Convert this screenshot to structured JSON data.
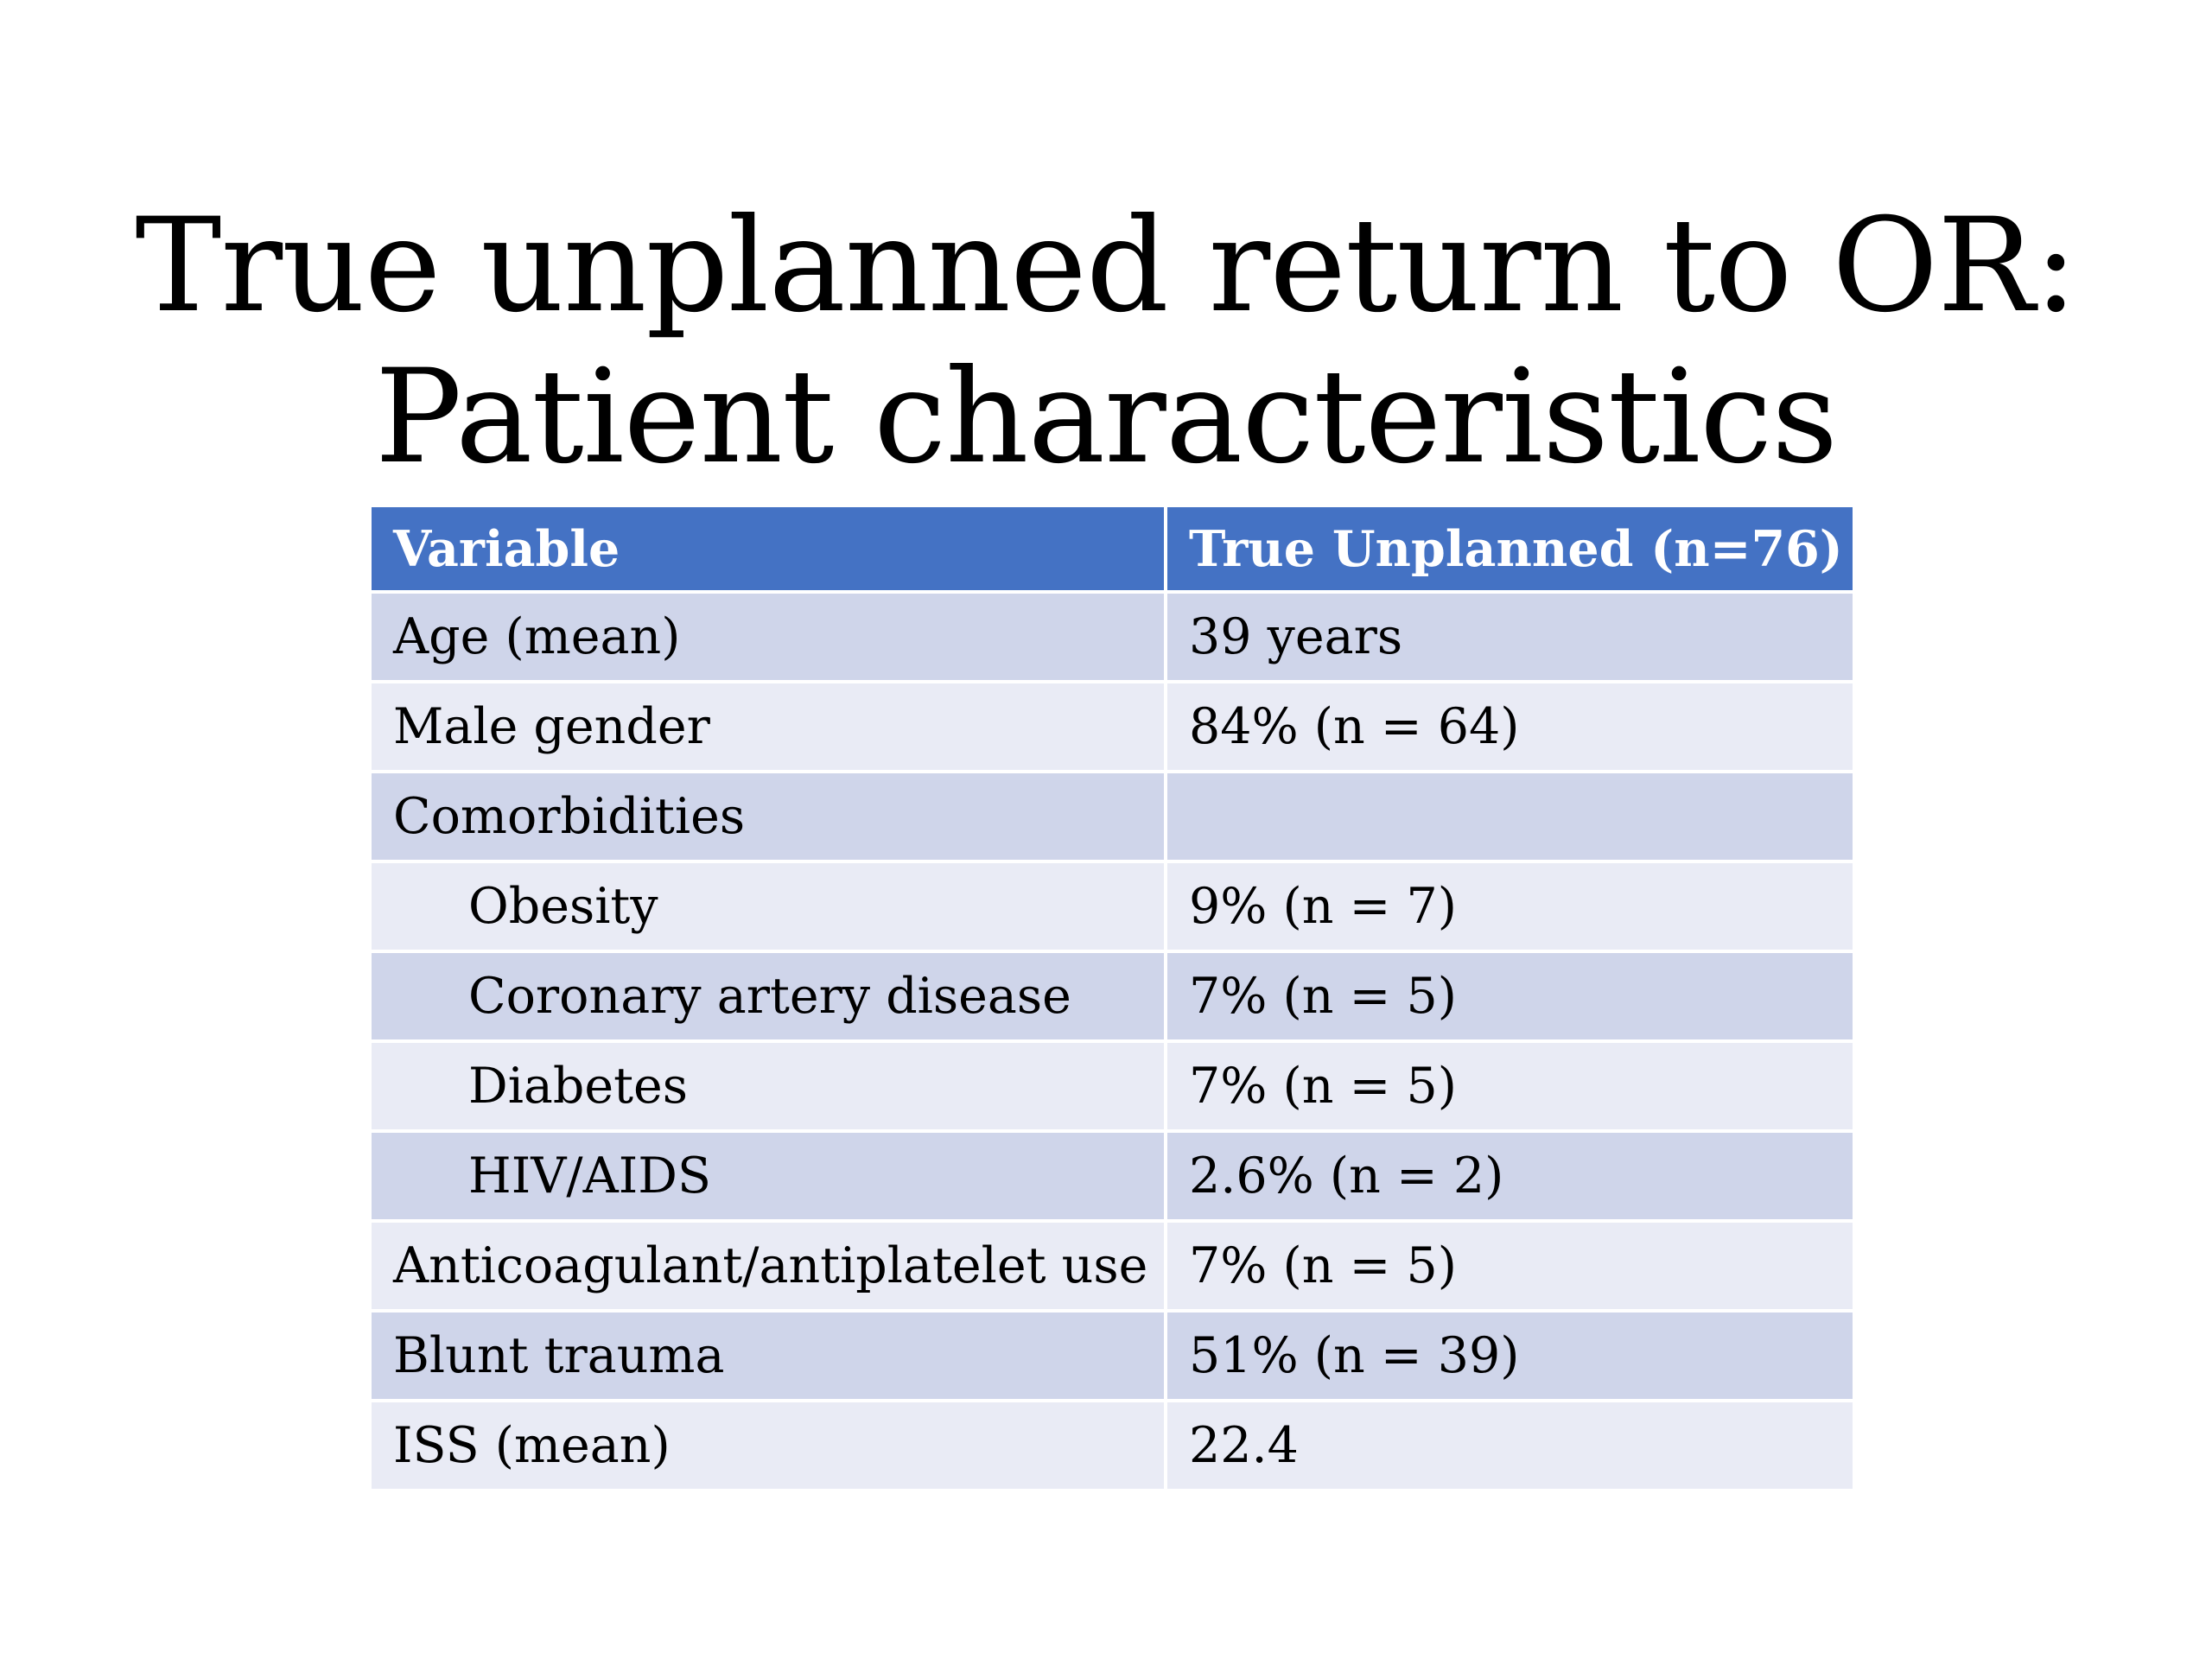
{
  "title": {
    "line1": "True unplanned return to OR:",
    "line2": "Patient characteristics"
  },
  "table": {
    "headers": [
      "Variable",
      "True Unplanned (n=76)"
    ],
    "rows": [
      {
        "variable": "Age (mean)",
        "value": "39 years",
        "indent": false
      },
      {
        "variable": "Male gender",
        "value": "84% (n = 64)",
        "indent": false
      },
      {
        "variable": "Comorbidities",
        "value": "",
        "indent": false
      },
      {
        "variable": "Obesity",
        "value": "9% (n = 7)",
        "indent": true
      },
      {
        "variable": "Coronary artery disease",
        "value": "7% (n = 5)",
        "indent": true
      },
      {
        "variable": "Diabetes",
        "value": "7% (n = 5)",
        "indent": true
      },
      {
        "variable": "HIV/AIDS",
        "value": "2.6% (n = 2)",
        "indent": true
      },
      {
        "variable": "Anticoagulant/antiplatelet use",
        "value": "7% (n = 5)",
        "indent": false
      },
      {
        "variable": "Blunt trauma",
        "value": "51% (n = 39)",
        "indent": false
      },
      {
        "variable": "ISS (mean)",
        "value": "22.4",
        "indent": false
      }
    ]
  },
  "colors": {
    "header_bg": "#4472c4",
    "row_band_dark": "#cfd5ea",
    "row_band_light": "#e9ebf5"
  }
}
